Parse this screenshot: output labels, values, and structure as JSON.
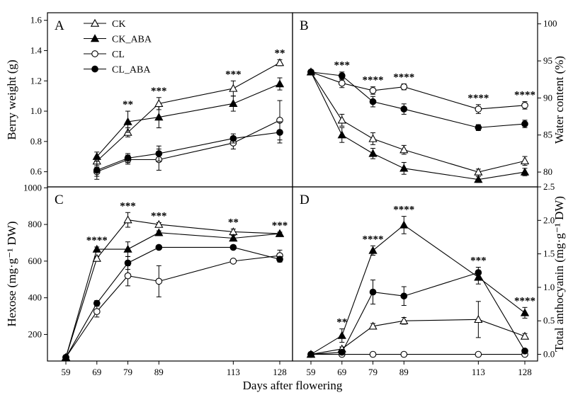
{
  "chart_data": {
    "type": "line",
    "xlabel": "Days after flowering",
    "x": [
      59,
      69,
      79,
      89,
      113,
      128
    ],
    "x_tick_labels": [
      "59",
      "69",
      "79",
      "89",
      "113",
      "128"
    ],
    "legend": {
      "placement": "top-left of panel A",
      "entries": [
        "CK",
        "CK_ABA",
        "CL",
        "CL_ABA"
      ]
    },
    "panels": [
      {
        "label": "A",
        "position": "top-left",
        "ylabel": "Berry weight (g)",
        "ylim": [
          0.5,
          1.65
        ],
        "yticks": [
          0.6,
          0.8,
          1.0,
          1.2,
          1.4,
          1.6
        ],
        "y_tick_labels": [
          "0.6",
          "0.8",
          "1.0",
          "1.2",
          "1.4",
          "1.6"
        ],
        "series": [
          {
            "name": "CK",
            "values": [
              null,
              0.67,
              0.86,
              1.05,
              1.15,
              1.32
            ],
            "errors": [
              null,
              0.03,
              0.03,
              0.04,
              0.05,
              0.02
            ]
          },
          {
            "name": "CK_ABA",
            "values": [
              null,
              0.7,
              0.93,
              0.96,
              1.05,
              1.18
            ],
            "errors": [
              null,
              0.03,
              0.07,
              0.07,
              0.05,
              0.04
            ]
          },
          {
            "name": "CL",
            "values": [
              null,
              0.6,
              0.68,
              0.68,
              0.79,
              0.94
            ],
            "errors": [
              null,
              0.03,
              0.03,
              0.07,
              0.04,
              0.13
            ]
          },
          {
            "name": "CL_ABA",
            "values": [
              null,
              0.61,
              0.69,
              0.72,
              0.82,
              0.86
            ],
            "errors": [
              null,
              0.06,
              0.03,
              0.05,
              0.03,
              0.07
            ]
          }
        ],
        "significance": [
          {
            "x": 79,
            "label": "**"
          },
          {
            "x": 89,
            "label": "***"
          },
          {
            "x": 113,
            "label": "***"
          },
          {
            "x": 128,
            "label": "**"
          }
        ]
      },
      {
        "label": "B",
        "position": "top-right",
        "ylabel": "Water content (%)",
        "ylabel_side": "right",
        "ylim": [
          78,
          101.5
        ],
        "yticks": [
          80,
          85,
          90,
          95,
          100
        ],
        "y_tick_labels": [
          "80",
          "85",
          "90",
          "95",
          "100"
        ],
        "series": [
          {
            "name": "CK",
            "values": [
              93.5,
              87.0,
              84.5,
              83.0,
              80.0,
              81.5
            ],
            "errors": [
              0.3,
              0.8,
              0.8,
              0.6,
              0.4,
              0.6
            ]
          },
          {
            "name": "CK_ABA",
            "values": [
              93.5,
              85.0,
              82.5,
              80.5,
              79.0,
              80.0
            ],
            "errors": [
              0.3,
              1.0,
              0.7,
              0.8,
              0.4,
              0.5
            ]
          },
          {
            "name": "CL",
            "values": [
              93.5,
              92.0,
              91.0,
              91.5,
              88.5,
              89.0
            ],
            "errors": [
              0.3,
              0.6,
              0.5,
              0.4,
              0.6,
              0.5
            ]
          },
          {
            "name": "CL_ABA",
            "values": [
              93.5,
              93.0,
              89.5,
              88.5,
              86.0,
              86.5
            ],
            "errors": [
              0.3,
              0.5,
              0.7,
              0.7,
              0.4,
              0.5
            ]
          }
        ],
        "significance": [
          {
            "x": 69,
            "label": "***"
          },
          {
            "x": 79,
            "label": "****"
          },
          {
            "x": 89,
            "label": "****"
          },
          {
            "x": 113,
            "label": "****"
          },
          {
            "x": 128,
            "label": "****"
          }
        ]
      },
      {
        "label": "C",
        "position": "bottom-left",
        "ylabel": "Hexose (mg·g⁻¹ DW)",
        "ylim": [
          55,
          1005
        ],
        "yticks": [
          200,
          400,
          600,
          800,
          1000
        ],
        "y_tick_labels": [
          "200",
          "400",
          "600",
          "800",
          "1000"
        ],
        "series": [
          {
            "name": "CK",
            "values": [
              75,
              615,
              825,
              800,
              760,
              750
            ],
            "errors": [
              5,
              10,
              40,
              10,
              15,
              8
            ]
          },
          {
            "name": "CK_ABA",
            "values": [
              75,
              665,
              665,
              755,
              725,
              750
            ],
            "errors": [
              5,
              12,
              40,
              10,
              15,
              8
            ]
          },
          {
            "name": "CL",
            "values": [
              75,
              325,
              520,
              490,
              600,
              630
            ],
            "errors": [
              5,
              30,
              55,
              85,
              10,
              30
            ]
          },
          {
            "name": "CL_ABA",
            "values": [
              75,
              370,
              590,
              675,
              675,
              610
            ],
            "errors": [
              5,
              15,
              35,
              10,
              10,
              15
            ]
          }
        ],
        "significance": [
          {
            "x": 69,
            "label": "****"
          },
          {
            "x": 79,
            "label": "***"
          },
          {
            "x": 89,
            "label": "***"
          },
          {
            "x": 113,
            "label": "**"
          },
          {
            "x": 128,
            "label": "***"
          }
        ]
      },
      {
        "label": "D",
        "position": "bottom-right",
        "ylabel": "Total anthocyanin (mg·g⁻¹ DW)",
        "ylabel_side": "right",
        "ylim": [
          -0.1,
          2.5
        ],
        "yticks": [
          0.0,
          0.5,
          1.0,
          1.5,
          2.0,
          2.5
        ],
        "y_tick_labels": [
          "0.0",
          "0.5",
          "1.0",
          "1.5",
          "2.0",
          "2.5"
        ],
        "series": [
          {
            "name": "CK",
            "values": [
              0.0,
              0.08,
              0.42,
              0.5,
              0.52,
              0.27
            ],
            "errors": [
              0.01,
              0.03,
              0.04,
              0.05,
              0.27,
              0.04
            ]
          },
          {
            "name": "CK_ABA",
            "values": [
              0.0,
              0.28,
              1.55,
              1.93,
              1.15,
              0.62
            ],
            "errors": [
              0.01,
              0.1,
              0.07,
              0.13,
              0.1,
              0.08
            ]
          },
          {
            "name": "CL",
            "values": [
              0.0,
              0.0,
              0.0,
              0.0,
              0.0,
              0.0
            ],
            "errors": [
              0.01,
              0.01,
              0.01,
              0.01,
              0.01,
              0.01
            ]
          },
          {
            "name": "CL_ABA",
            "values": [
              0.0,
              0.03,
              0.93,
              0.87,
              1.22,
              0.05
            ],
            "errors": [
              0.01,
              0.02,
              0.18,
              0.14,
              0.08,
              0.03
            ]
          }
        ],
        "significance": [
          {
            "x": 69,
            "label": "**"
          },
          {
            "x": 79,
            "label": "****"
          },
          {
            "x": 89,
            "label": "****"
          },
          {
            "x": 113,
            "label": "***"
          },
          {
            "x": 128,
            "label": "****"
          }
        ]
      }
    ],
    "grid": false
  }
}
